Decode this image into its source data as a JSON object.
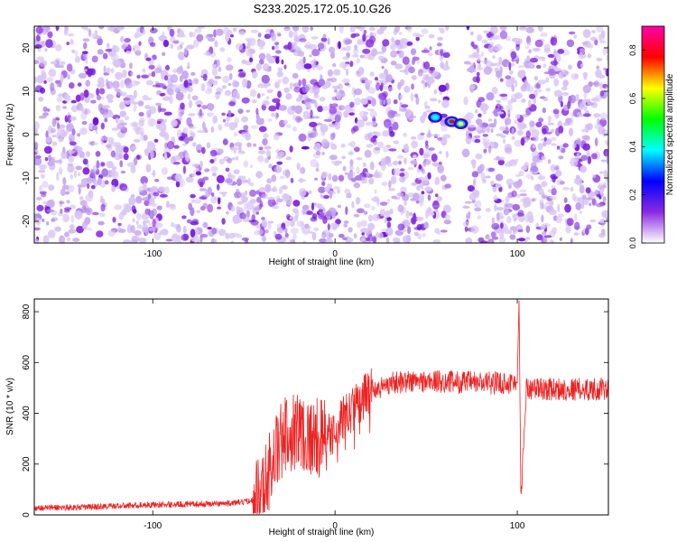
{
  "title": "S233.2025.172.05.10.G26",
  "colorbar": {
    "label": "Normalized spectral amplitude",
    "range": [
      0.0,
      0.9
    ],
    "ticks": [
      "0.0",
      "0.2",
      "0.4",
      "0.6",
      "0.8"
    ],
    "tick_values": [
      0.0,
      0.2,
      0.4,
      0.6,
      0.8
    ],
    "colors": [
      "#ffffff",
      "#8a2be2",
      "#0000ff",
      "#00ffff",
      "#00ff00",
      "#ffff00",
      "#ff0000",
      "#ff00aa"
    ]
  },
  "chart_data": [
    {
      "type": "heatmap",
      "xlabel": "Height of straight line (km)",
      "ylabel": "Frequency (Hz)",
      "xlim": [
        -165,
        150
      ],
      "ylim": [
        -25,
        25
      ],
      "xticks": [
        -100,
        0,
        100
      ],
      "xtick_labels": [
        "-100",
        "0",
        "100"
      ],
      "yticks": [
        -20,
        -10,
        0,
        10,
        20
      ],
      "ytick_labels": [
        "-20",
        "-10",
        "0",
        "10",
        "20"
      ],
      "background_noise_color": "#8a2be2",
      "gap_x_range": [
        62,
        71
      ],
      "hot_spots": [
        {
          "x": 55,
          "y": 4,
          "amplitude": 0.35
        },
        {
          "x": 64,
          "y": 3,
          "amplitude": 0.75
        },
        {
          "x": 69,
          "y": 2.5,
          "amplitude": 0.7
        }
      ]
    },
    {
      "type": "line",
      "xlabel": "Height of straight line (km)",
      "ylabel": "SNR (10 * v/v)",
      "xlim": [
        -165,
        150
      ],
      "ylim": [
        0,
        850
      ],
      "xticks": [
        -100,
        0,
        100
      ],
      "xtick_labels": [
        "-100",
        "0",
        "100"
      ],
      "yticks": [
        0,
        200,
        400,
        600,
        800
      ],
      "ytick_labels": [
        "0",
        "200",
        "400",
        "600",
        "800"
      ],
      "color": "#ee2222",
      "series": [
        {
          "x": [
            -165,
            -140,
            -120,
            -100,
            -80,
            -60,
            -50,
            -45,
            -40,
            -35,
            -30,
            -25,
            -20,
            -15,
            -10,
            -5,
            0,
            5,
            10,
            15,
            20,
            25,
            30,
            40,
            60,
            80,
            95,
            100,
            101,
            102,
            105,
            120,
            135,
            150
          ],
          "y": [
            28,
            30,
            35,
            40,
            42,
            45,
            50,
            60,
            90,
            200,
            280,
            330,
            340,
            310,
            300,
            300,
            340,
            380,
            420,
            460,
            490,
            500,
            520,
            525,
            525,
            520,
            520,
            520,
            850,
            60,
            500,
            495,
            495,
            495
          ]
        }
      ]
    }
  ]
}
